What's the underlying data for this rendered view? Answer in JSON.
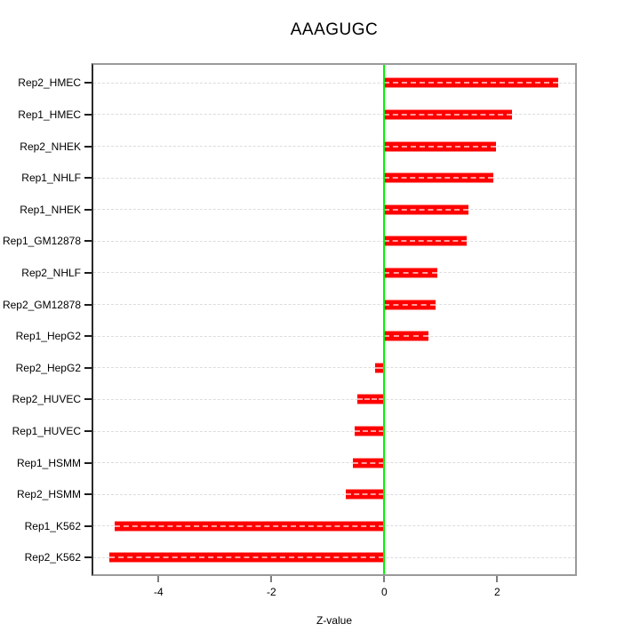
{
  "title": "AAAGUGC",
  "chart_data": {
    "type": "bar",
    "orientation": "horizontal",
    "title": "AAAGUGC",
    "xlabel": "Z-value",
    "ylabel": "",
    "categories": [
      "Rep2_HMEC",
      "Rep1_HMEC",
      "Rep2_NHEK",
      "Rep1_NHLF",
      "Rep1_NHEK",
      "Rep1_GM12878",
      "Rep2_NHLF",
      "Rep2_GM12878",
      "Rep1_HepG2",
      "Rep2_HepG2",
      "Rep2_HUVEC",
      "Rep1_HUVEC",
      "Rep1_HSMM",
      "Rep2_HSMM",
      "Rep1_K562",
      "Rep2_K562"
    ],
    "values": [
      3.08,
      2.27,
      1.98,
      1.93,
      1.49,
      1.46,
      0.94,
      0.91,
      0.79,
      -0.17,
      -0.48,
      -0.53,
      -0.55,
      -0.68,
      -4.77,
      -4.87
    ],
    "xlim": [
      -5.15,
      3.38
    ],
    "xticks": [
      -4,
      -2,
      0,
      2
    ],
    "xtick_labels": [
      "-4",
      "-2",
      "0",
      "2"
    ],
    "grid": "horizontal dashed light-gray line per row",
    "legend": "none",
    "bar_color": "#ff0000",
    "bar_edge_color": "#ff8d8d",
    "zero_line_color": "#00f400",
    "box_color": "#9a9a9a",
    "axis_color": "#1c1c1c"
  }
}
